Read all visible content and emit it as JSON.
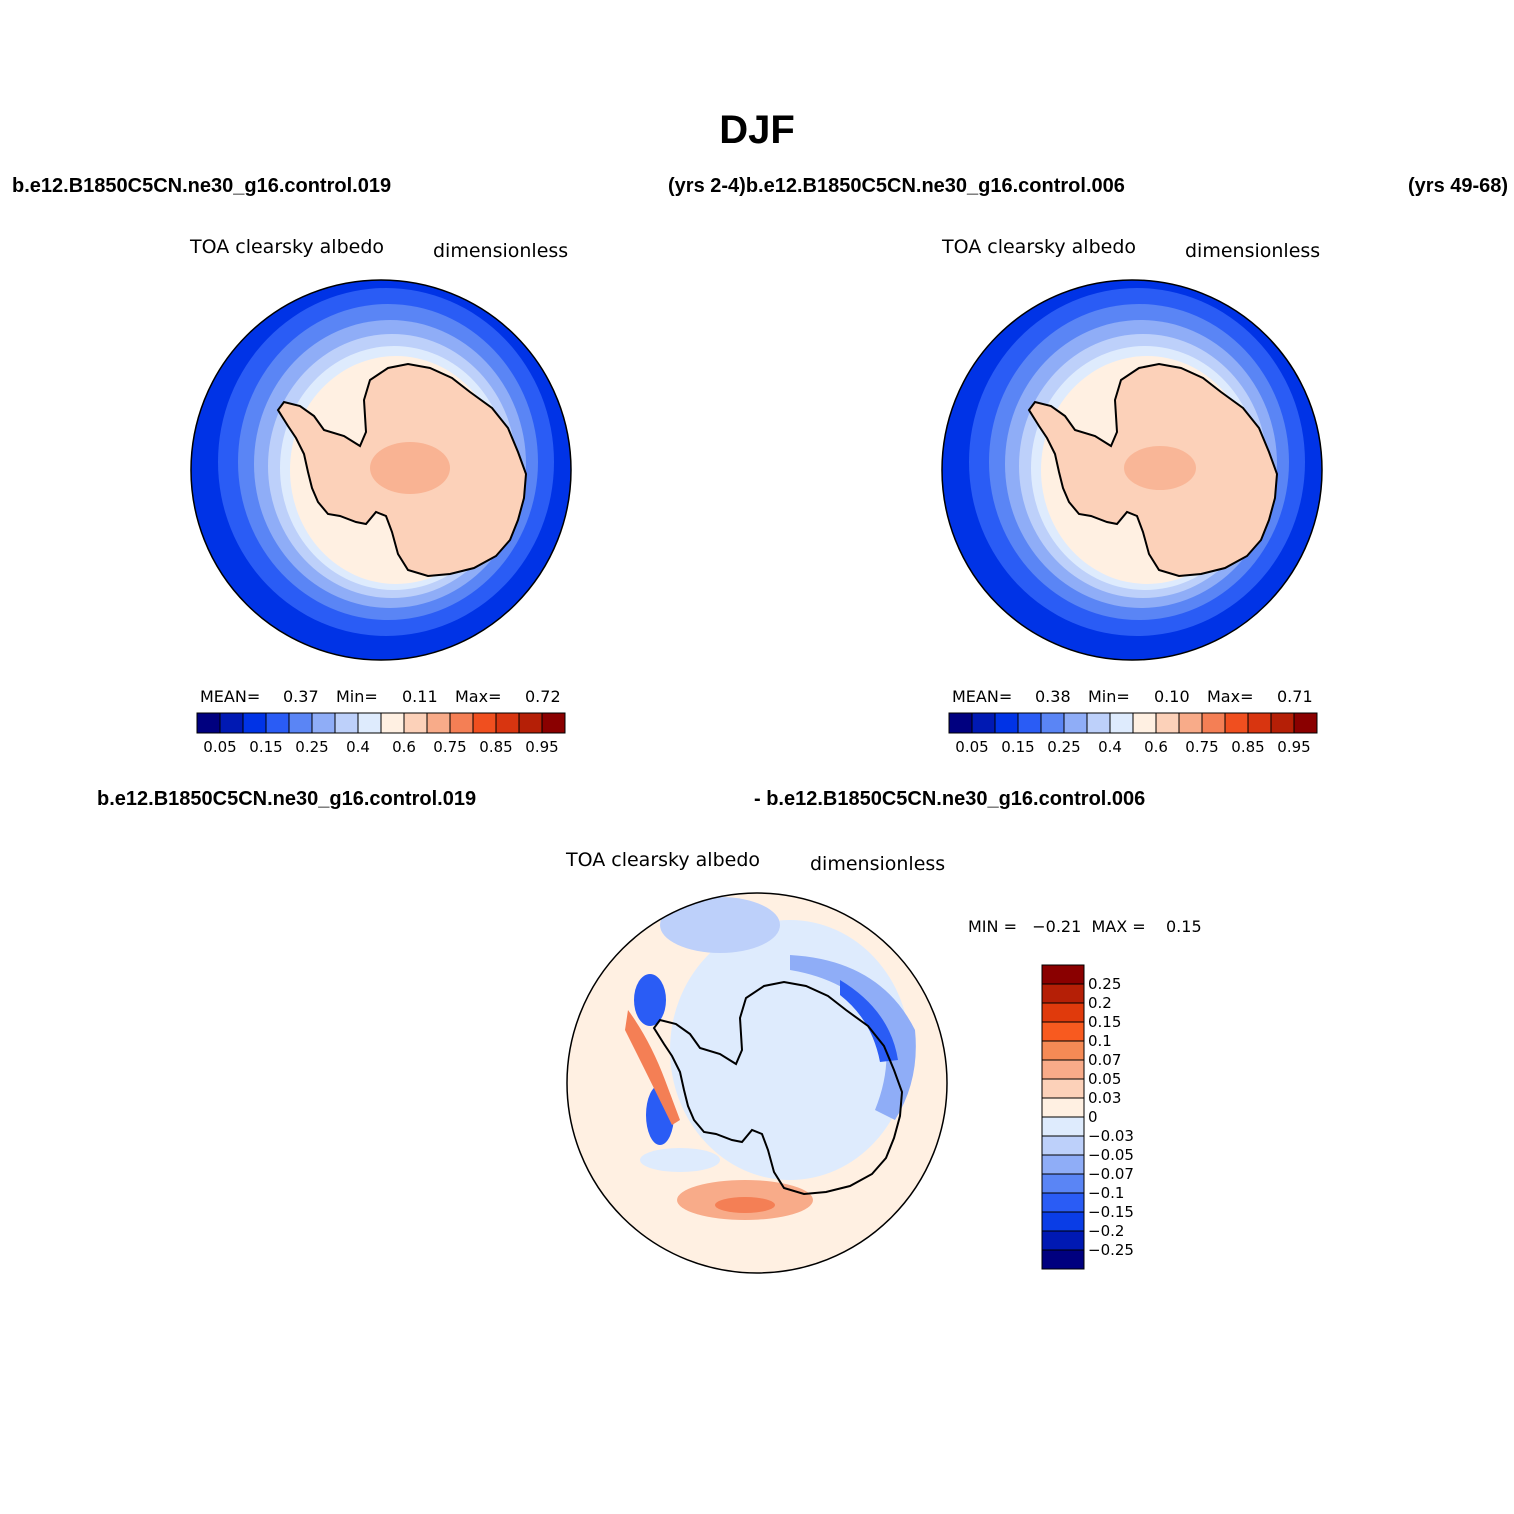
{
  "title": "DJF",
  "top_left_case": "b.e12.B1850C5CN.ne30_g16.control.019",
  "top_mid_case": "(yrs 2-4)b.e12.B1850C5CN.ne30_g16.control.006",
  "top_right_years": "(yrs 49-68)",
  "diff_case_a": "b.e12.B1850C5CN.ne30_g16.control.019",
  "diff_case_b": "- b.e12.B1850C5CN.ne30_g16.control.006",
  "panels": [
    {
      "variable": "TOA clearsky albedo",
      "units": "dimensionless",
      "mean_label": "MEAN=",
      "mean": "0.37",
      "min_label": "Min=",
      "min": "0.11",
      "max_label": "Max=",
      "max": "0.72"
    },
    {
      "variable": "TOA clearsky albedo",
      "units": "dimensionless",
      "mean_label": "MEAN=",
      "mean": "0.38",
      "min_label": "Min=",
      "min": "0.10",
      "max_label": "Max=",
      "max": "0.71"
    },
    {
      "variable": "TOA clearsky albedo",
      "units": "dimensionless",
      "minmax": "MIN =   −0.21  MAX =    0.15"
    }
  ],
  "abs_colorbar": {
    "colors": [
      "#00007f",
      "#0019b3",
      "#0033e6",
      "#2a5cf5",
      "#5a85f5",
      "#8fadf7",
      "#bdd0fa",
      "#deebfd",
      "#fff0e2",
      "#fcd1b9",
      "#f8ab89",
      "#f47f55",
      "#f04f1f",
      "#d83510",
      "#b51f06",
      "#8a0000"
    ],
    "tick_labels": [
      "0.05",
      "0.15",
      "0.25",
      "0.4",
      "0.6",
      "0.75",
      "0.85",
      "0.95"
    ]
  },
  "diff_colorbar": {
    "colors": [
      "#8a0000",
      "#b51f06",
      "#e03a0c",
      "#f85a1f",
      "#f58a55",
      "#f8ab89",
      "#fcd1b9",
      "#fff0e2",
      "#deebfd",
      "#bdd0fa",
      "#8fadf7",
      "#5a85f5",
      "#2a5cf5",
      "#0a3de6",
      "#0019b3",
      "#00007f"
    ],
    "tick_labels": [
      "0.25",
      "0.2",
      "0.15",
      "0.1",
      "0.07",
      "0.05",
      "0.03",
      "0",
      "−0.03",
      "−0.05",
      "−0.07",
      "−0.1",
      "−0.15",
      "−0.2",
      "−0.25"
    ]
  }
}
